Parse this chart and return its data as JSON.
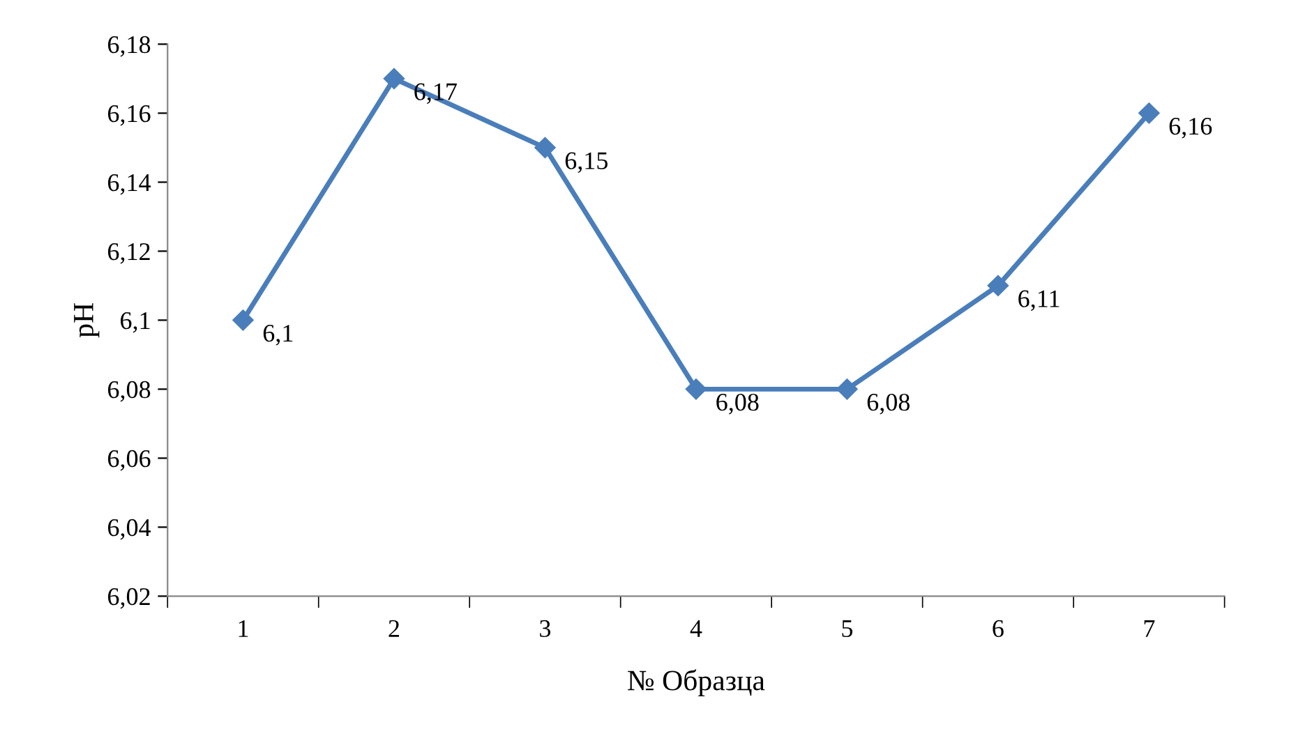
{
  "chart_data": {
    "type": "line",
    "xlabel": "№ Образца",
    "ylabel": "pH",
    "categories": [
      "1",
      "2",
      "3",
      "4",
      "5",
      "6",
      "7"
    ],
    "series": [
      {
        "color": "#4a7ebb",
        "values": [
          6.1,
          6.17,
          6.15,
          6.08,
          6.08,
          6.11,
          6.16
        ],
        "value_labels": [
          "6,1",
          "6,17",
          "6,15",
          "6,08",
          "6,08",
          "6,11",
          "6,16"
        ]
      }
    ],
    "ylim": [
      6.02,
      6.18
    ],
    "yticks": [
      {
        "value": 6.02,
        "label": "6,02"
      },
      {
        "value": 6.04,
        "label": "6,04"
      },
      {
        "value": 6.06,
        "label": "6,06"
      },
      {
        "value": 6.08,
        "label": "6,08"
      },
      {
        "value": 6.1,
        "label": "6,1"
      },
      {
        "value": 6.12,
        "label": "6,12"
      },
      {
        "value": 6.14,
        "label": "6,14"
      },
      {
        "value": 6.16,
        "label": "6,16"
      },
      {
        "value": 6.18,
        "label": "6,18"
      }
    ],
    "marker": "diamond",
    "line_style": "solid",
    "grid": false
  }
}
